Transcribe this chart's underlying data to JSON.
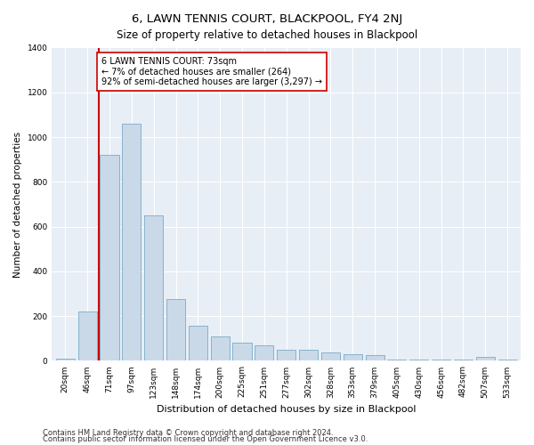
{
  "title": "6, LAWN TENNIS COURT, BLACKPOOL, FY4 2NJ",
  "subtitle": "Size of property relative to detached houses in Blackpool",
  "xlabel": "Distribution of detached houses by size in Blackpool",
  "ylabel": "Number of detached properties",
  "bar_labels": [
    "20sqm",
    "46sqm",
    "71sqm",
    "97sqm",
    "123sqm",
    "148sqm",
    "174sqm",
    "200sqm",
    "225sqm",
    "251sqm",
    "277sqm",
    "302sqm",
    "328sqm",
    "353sqm",
    "379sqm",
    "405sqm",
    "430sqm",
    "456sqm",
    "482sqm",
    "507sqm",
    "533sqm"
  ],
  "bar_values": [
    8,
    220,
    920,
    1060,
    650,
    275,
    155,
    110,
    80,
    70,
    50,
    48,
    38,
    30,
    25,
    5,
    5,
    4,
    4,
    18,
    4
  ],
  "bar_color": "#c9d9e8",
  "bar_edge_color": "#7aaac8",
  "vline_x": 1.5,
  "vline_color": "#cc0000",
  "annotation_text": "6 LAWN TENNIS COURT: 73sqm\n← 7% of detached houses are smaller (264)\n92% of semi-detached houses are larger (3,297) →",
  "annotation_box_color": "#ffffff",
  "annotation_box_edge": "#cc0000",
  "ylim": [
    0,
    1400
  ],
  "yticks": [
    0,
    200,
    400,
    600,
    800,
    1000,
    1200,
    1400
  ],
  "plot_bg_color": "#e8eef5",
  "footer1": "Contains HM Land Registry data © Crown copyright and database right 2024.",
  "footer2": "Contains public sector information licensed under the Open Government Licence v3.0.",
  "title_fontsize": 9.5,
  "subtitle_fontsize": 8.5,
  "xlabel_fontsize": 8,
  "ylabel_fontsize": 7.5,
  "tick_fontsize": 6.5,
  "footer_fontsize": 6,
  "annot_fontsize": 7
}
